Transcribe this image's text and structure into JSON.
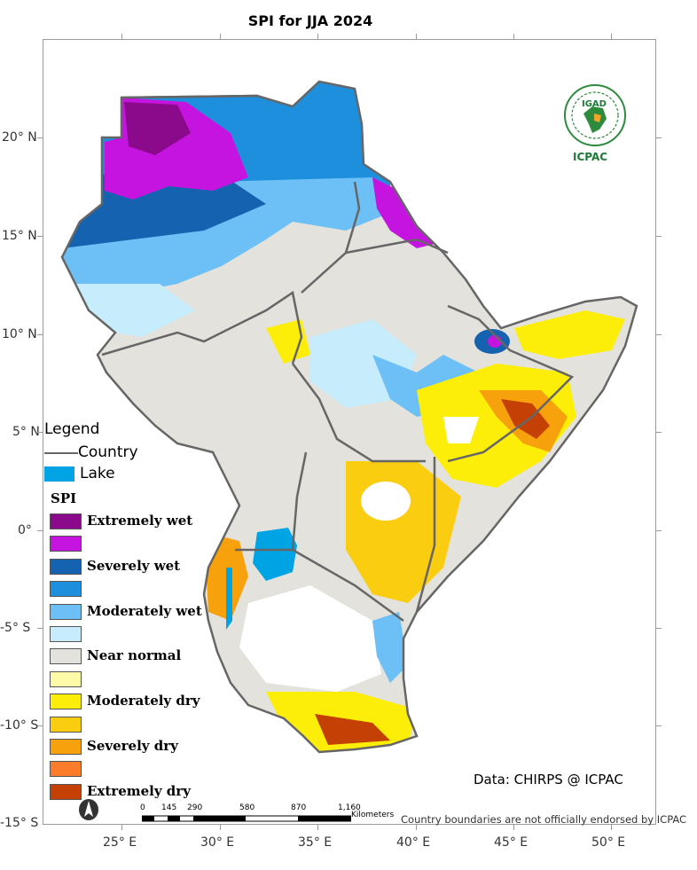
{
  "title": "SPI  for JJA 2024",
  "axes": {
    "y_labels": [
      "20° N",
      "15° N",
      "10° N",
      "5° N",
      "0°",
      "-5° S",
      "-10° S",
      "-15° S"
    ],
    "x_labels": [
      "25° E",
      "30° E",
      "35° E",
      "40° E",
      "45° E",
      "50° E"
    ]
  },
  "legend": {
    "title": "Legend",
    "country_label": "Country",
    "lake_label": "Lake",
    "lake_color": "#00a4e4",
    "spi_title": "SPI",
    "classes": [
      {
        "label": "Extremely wet",
        "color": "#8b0a8c"
      },
      {
        "label": "",
        "color": "#c614e0"
      },
      {
        "label": "Severely wet",
        "color": "#1563b0"
      },
      {
        "label": "",
        "color": "#1e8fdc"
      },
      {
        "label": "Moderately wet",
        "color": "#6cc0f5"
      },
      {
        "label": "",
        "color": "#c7ecfb"
      },
      {
        "label": "Near normal",
        "color": "#e3e2dc"
      },
      {
        "label": "",
        "color": "#fdfba8"
      },
      {
        "label": "Moderately dry",
        "color": "#fdee0a"
      },
      {
        "label": "",
        "color": "#fbcd10"
      },
      {
        "label": "Severely dry",
        "color": "#f7a20c"
      },
      {
        "label": "",
        "color": "#fb7d2c"
      },
      {
        "label": "Extremely dry",
        "color": "#c54004"
      }
    ]
  },
  "credit": "Data: CHIRPS @ ICPAC",
  "disclaimer": "Country boundaries are not officially endorsed by ICPAC",
  "scale_bar": {
    "ticks": [
      "0",
      "145",
      "290",
      "580",
      "870",
      "1,160"
    ],
    "unit": "Kilometers"
  },
  "logo": {
    "top_text": "IGAD",
    "bottom_text": "ICPAC"
  },
  "north_arrow_icon": "north-arrow-icon"
}
